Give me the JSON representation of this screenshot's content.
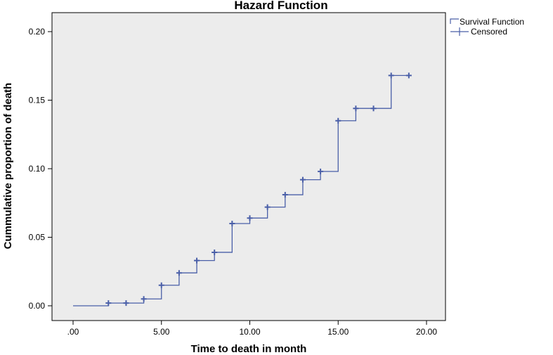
{
  "chart_data": {
    "type": "line",
    "title": "Hazard Function",
    "xlabel": "Time to death in month",
    "ylabel": "Cummulative proportion of death",
    "xlim": [
      0,
      20
    ],
    "ylim": [
      0,
      0.2
    ],
    "x_ticks": [
      ".00",
      "5.00",
      "10.00",
      "15.00",
      "20.00"
    ],
    "y_ticks": [
      "0.00",
      "0.05",
      "0.10",
      "0.15",
      "0.20"
    ],
    "grid": false,
    "legend_position": "top-right",
    "legend": [
      "Survival Function",
      "Censored"
    ],
    "line_color": "#4a5fa8",
    "plot_background": "#ececec",
    "series": [
      {
        "name": "Survival Function",
        "step": true,
        "x": [
          0,
          2,
          4,
          5,
          6,
          7,
          8,
          9,
          10,
          11,
          12,
          13,
          14,
          15,
          16,
          17,
          18,
          19
        ],
        "y": [
          0,
          0.002,
          0.005,
          0.015,
          0.024,
          0.033,
          0.039,
          0.06,
          0.064,
          0.072,
          0.081,
          0.092,
          0.098,
          0.135,
          0.144,
          0.144,
          0.168,
          0.168
        ]
      },
      {
        "name": "Censored",
        "marker": "+",
        "x": [
          2,
          3,
          4,
          5,
          6,
          7,
          8,
          9,
          10,
          11,
          12,
          13,
          14,
          15,
          16,
          17,
          18,
          19
        ],
        "y": [
          0.002,
          0.002,
          0.005,
          0.015,
          0.024,
          0.033,
          0.039,
          0.06,
          0.064,
          0.072,
          0.081,
          0.092,
          0.098,
          0.135,
          0.144,
          0.144,
          0.168,
          0.168
        ]
      }
    ]
  }
}
